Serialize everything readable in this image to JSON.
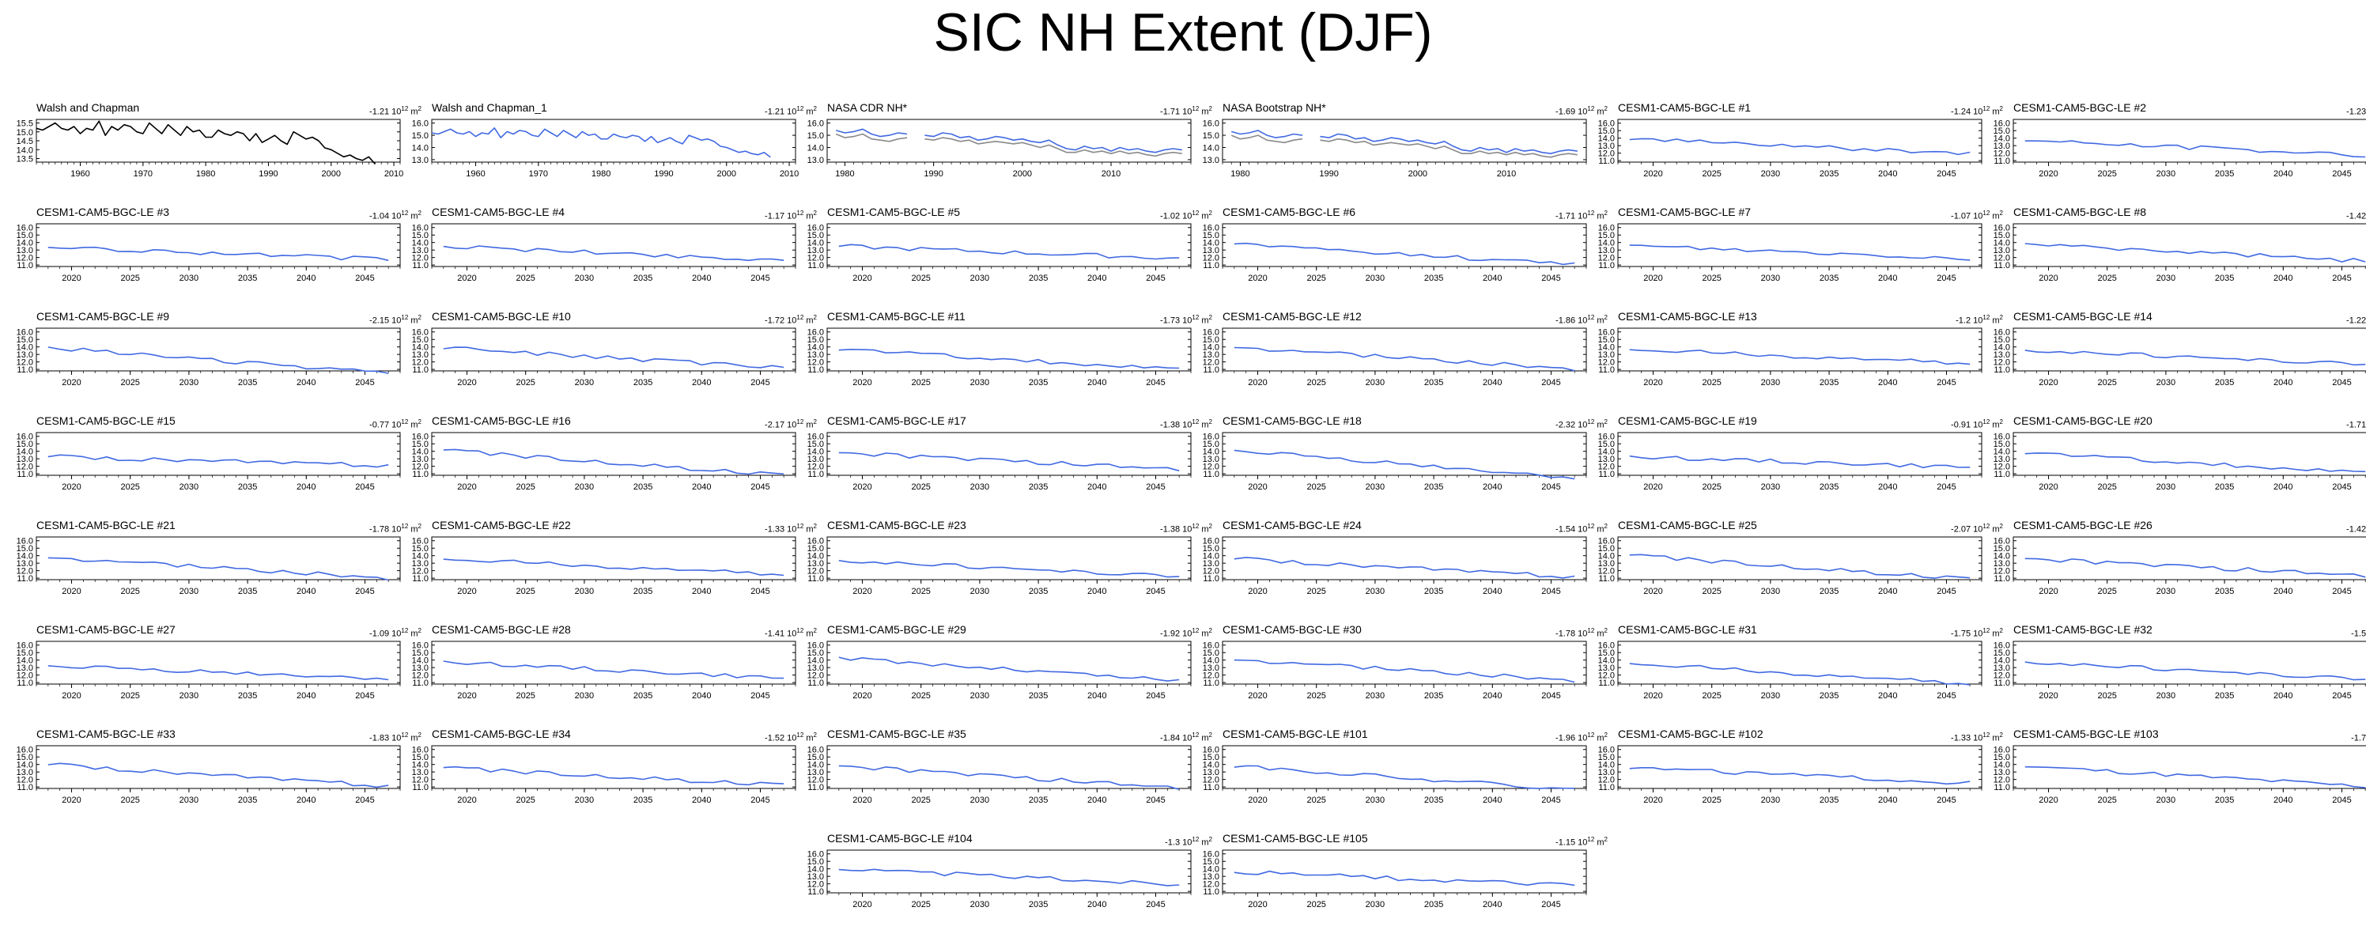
{
  "title": "SIC NH Extent (DJF)",
  "colors": {
    "obs": "#000000",
    "obs_alt": "#8a8a8a",
    "model": "#4169e1",
    "axis": "#000000"
  },
  "panels": [
    {
      "name": "Walsh and Chapman",
      "trend": "-1.21",
      "yticks": [
        "13.5",
        "14.0",
        "14.5",
        "15.0",
        "15.5"
      ],
      "ylim": [
        13.3,
        15.7
      ],
      "xticks": [
        "1960",
        "1970",
        "1980",
        "1990",
        "2000",
        "2010"
      ],
      "xlim": [
        1953,
        2011
      ],
      "style": "obs"
    },
    {
      "name": "Walsh and Chapman_1",
      "trend": "-1.21",
      "yticks": [
        "13.0",
        "14.0",
        "15.0",
        "16.0"
      ],
      "ylim": [
        12.8,
        16.3
      ],
      "xticks": [
        "1960",
        "1970",
        "1980",
        "1990",
        "2000",
        "2010"
      ],
      "xlim": [
        1953,
        2011
      ],
      "style": "model"
    },
    {
      "name": "NASA CDR NH*",
      "trend": "-1.71",
      "yticks": [
        "13.0",
        "14.0",
        "15.0",
        "16.0"
      ],
      "ylim": [
        12.8,
        16.3
      ],
      "xticks": [
        "1980",
        "1990",
        "2000",
        "2010"
      ],
      "xlim": [
        1978,
        2019
      ],
      "style": "dual"
    },
    {
      "name": "NASA Bootstrap NH*",
      "trend": "-1.69",
      "yticks": [
        "13.0",
        "14.0",
        "15.0",
        "16.0"
      ],
      "ylim": [
        12.8,
        16.3
      ],
      "xticks": [
        "1980",
        "1990",
        "2000",
        "2010"
      ],
      "xlim": [
        1978,
        2019
      ],
      "style": "dual"
    },
    {
      "name": "CESM1-CAM5-BGC-LE #1",
      "trend": "-1.24"
    },
    {
      "name": "CESM1-CAM5-BGC-LE #2",
      "trend": "-1.23"
    },
    {
      "name": "CESM1-CAM5-BGC-LE #3",
      "trend": "-1.04"
    },
    {
      "name": "CESM1-CAM5-BGC-LE #4",
      "trend": "-1.17"
    },
    {
      "name": "CESM1-CAM5-BGC-LE #5",
      "trend": "-1.02"
    },
    {
      "name": "CESM1-CAM5-BGC-LE #6",
      "trend": "-1.71"
    },
    {
      "name": "CESM1-CAM5-BGC-LE #7",
      "trend": "-1.07"
    },
    {
      "name": "CESM1-CAM5-BGC-LE #8",
      "trend": "-1.42"
    },
    {
      "name": "CESM1-CAM5-BGC-LE #9",
      "trend": "-2.15"
    },
    {
      "name": "CESM1-CAM5-BGC-LE #10",
      "trend": "-1.72"
    },
    {
      "name": "CESM1-CAM5-BGC-LE #11",
      "trend": "-1.73"
    },
    {
      "name": "CESM1-CAM5-BGC-LE #12",
      "trend": "-1.86"
    },
    {
      "name": "CESM1-CAM5-BGC-LE #13",
      "trend": "-1.2"
    },
    {
      "name": "CESM1-CAM5-BGC-LE #14",
      "trend": "-1.22"
    },
    {
      "name": "CESM1-CAM5-BGC-LE #15",
      "trend": "-0.77"
    },
    {
      "name": "CESM1-CAM5-BGC-LE #16",
      "trend": "-2.17"
    },
    {
      "name": "CESM1-CAM5-BGC-LE #17",
      "trend": "-1.38"
    },
    {
      "name": "CESM1-CAM5-BGC-LE #18",
      "trend": "-2.32"
    },
    {
      "name": "CESM1-CAM5-BGC-LE #19",
      "trend": "-0.91"
    },
    {
      "name": "CESM1-CAM5-BGC-LE #20",
      "trend": "-1.71"
    },
    {
      "name": "CESM1-CAM5-BGC-LE #21",
      "trend": "-1.78"
    },
    {
      "name": "CESM1-CAM5-BGC-LE #22",
      "trend": "-1.33"
    },
    {
      "name": "CESM1-CAM5-BGC-LE #23",
      "trend": "-1.38"
    },
    {
      "name": "CESM1-CAM5-BGC-LE #24",
      "trend": "-1.54"
    },
    {
      "name": "CESM1-CAM5-BGC-LE #25",
      "trend": "-2.07"
    },
    {
      "name": "CESM1-CAM5-BGC-LE #26",
      "trend": "-1.42"
    },
    {
      "name": "CESM1-CAM5-BGC-LE #27",
      "trend": "-1.09"
    },
    {
      "name": "CESM1-CAM5-BGC-LE #28",
      "trend": "-1.41"
    },
    {
      "name": "CESM1-CAM5-BGC-LE #29",
      "trend": "-1.92"
    },
    {
      "name": "CESM1-CAM5-BGC-LE #30",
      "trend": "-1.78"
    },
    {
      "name": "CESM1-CAM5-BGC-LE #31",
      "trend": "-1.75"
    },
    {
      "name": "CESM1-CAM5-BGC-LE #32",
      "trend": "-1.5"
    },
    {
      "name": "CESM1-CAM5-BGC-LE #33",
      "trend": "-1.83"
    },
    {
      "name": "CESM1-CAM5-BGC-LE #34",
      "trend": "-1.52"
    },
    {
      "name": "CESM1-CAM5-BGC-LE #35",
      "trend": "-1.84"
    },
    {
      "name": "CESM1-CAM5-BGC-LE #101",
      "trend": "-1.96"
    },
    {
      "name": "CESM1-CAM5-BGC-LE #102",
      "trend": "-1.33"
    },
    {
      "name": "CESM1-CAM5-BGC-LE #103",
      "trend": "-1.7"
    },
    {
      "name": "CESM1-CAM5-BGC-LE #104",
      "trend": "-1.3"
    },
    {
      "name": "CESM1-CAM5-BGC-LE #105",
      "trend": "-1.15"
    }
  ],
  "chart_data": {
    "type": "line",
    "title": "SIC NH Extent (DJF)",
    "trend_units_base": "10",
    "trend_units_exp": "12",
    "trend_units_suffix": "m",
    "trend_units_suffix_exp": "2",
    "model_defaults": {
      "xticks": [
        "2020",
        "2025",
        "2030",
        "2035",
        "2040",
        "2045"
      ],
      "xlim": [
        2017,
        2048
      ],
      "yticks": [
        "11.0",
        "12.0",
        "13.0",
        "14.0",
        "15.0",
        "16.0"
      ],
      "ylim": [
        10.8,
        16.5
      ]
    },
    "series": {
      "Walsh and Chapman": {
        "x0": 1953,
        "values": [
          15.2,
          15.1,
          15.3,
          15.5,
          15.2,
          15.1,
          15.3,
          14.9,
          15.2,
          15.1,
          15.6,
          14.8,
          15.3,
          15.1,
          15.4,
          15.3,
          15.0,
          14.9,
          15.5,
          15.2,
          14.9,
          15.4,
          15.1,
          14.8,
          15.3,
          15.0,
          15.1,
          14.7,
          14.7,
          15.1,
          14.9,
          14.8,
          15.0,
          14.9,
          14.5,
          14.9,
          14.4,
          14.6,
          14.8,
          14.5,
          14.3,
          15.0,
          14.8,
          14.6,
          14.7,
          14.5,
          14.1,
          14.0,
          13.8,
          13.6,
          13.7,
          13.5,
          13.4,
          13.6,
          13.2
        ]
      },
      "Walsh and Chapman_1": {
        "x0": 1953,
        "values": [
          15.2,
          15.1,
          15.3,
          15.5,
          15.2,
          15.1,
          15.3,
          14.9,
          15.2,
          15.1,
          15.6,
          14.8,
          15.3,
          15.1,
          15.4,
          15.3,
          15.0,
          14.9,
          15.5,
          15.2,
          14.9,
          15.4,
          15.1,
          14.8,
          15.3,
          15.0,
          15.1,
          14.7,
          14.7,
          15.1,
          14.9,
          14.8,
          15.0,
          14.9,
          14.5,
          14.9,
          14.4,
          14.6,
          14.8,
          14.5,
          14.3,
          15.0,
          14.8,
          14.6,
          14.7,
          14.5,
          14.1,
          14.0,
          13.8,
          13.6,
          13.7,
          13.5,
          13.4,
          13.6,
          13.2
        ]
      },
      "NASA CDR NH*": {
        "x0": 1979,
        "values": [
          15.4,
          15.2,
          15.3,
          15.5,
          15.1,
          14.9,
          15.0,
          15.2,
          15.1,
          null,
          15.0,
          14.9,
          15.2,
          15.1,
          14.8,
          14.9,
          14.6,
          14.7,
          14.9,
          14.8,
          14.6,
          14.7,
          14.5,
          14.4,
          14.6,
          14.2,
          13.9,
          13.8,
          14.1,
          13.9,
          14.0,
          13.7,
          14.0,
          13.8,
          13.9,
          13.7,
          13.6,
          13.8,
          13.9,
          13.8
        ],
        "alt": [
          15.1,
          14.8,
          14.9,
          15.1,
          14.7,
          14.6,
          14.5,
          14.7,
          14.8,
          null,
          14.7,
          14.6,
          14.8,
          14.7,
          14.5,
          14.6,
          14.3,
          14.4,
          14.5,
          14.4,
          14.3,
          14.4,
          14.2,
          14.0,
          14.2,
          13.9,
          13.6,
          13.6,
          13.8,
          13.6,
          13.7,
          13.5,
          13.7,
          13.5,
          13.6,
          13.4,
          13.3,
          13.5,
          13.6,
          13.5
        ]
      },
      "NASA Bootstrap NH*": {
        "x0": 1979,
        "values": [
          15.3,
          15.1,
          15.2,
          15.4,
          15.0,
          14.8,
          14.9,
          15.1,
          15.0,
          null,
          14.9,
          14.8,
          15.1,
          15.0,
          14.7,
          14.8,
          14.5,
          14.6,
          14.8,
          14.7,
          14.5,
          14.6,
          14.4,
          14.3,
          14.5,
          14.1,
          13.8,
          13.7,
          14.0,
          13.8,
          13.9,
          13.6,
          13.9,
          13.7,
          13.8,
          13.6,
          13.5,
          13.7,
          13.8,
          13.7
        ],
        "alt": [
          15.0,
          14.7,
          14.8,
          15.0,
          14.6,
          14.5,
          14.4,
          14.6,
          14.7,
          null,
          14.6,
          14.5,
          14.7,
          14.6,
          14.4,
          14.5,
          14.2,
          14.3,
          14.4,
          14.3,
          14.2,
          14.3,
          14.1,
          13.9,
          14.1,
          13.8,
          13.5,
          13.5,
          13.7,
          13.5,
          13.6,
          13.4,
          13.6,
          13.4,
          13.5,
          13.3,
          13.2,
          13.4,
          13.5,
          13.4
        ]
      },
      "CESM1-CAM5-BGC-LE #1": {
        "x0": 2018,
        "start": 13.9,
        "trend": -1.24
      },
      "CESM1-CAM5-BGC-LE #2": {
        "x0": 2018,
        "start": 13.7,
        "trend": -1.23
      },
      "CESM1-CAM5-BGC-LE #3": {
        "x0": 2018,
        "start": 13.4,
        "trend": -1.04
      },
      "CESM1-CAM5-BGC-LE #4": {
        "x0": 2018,
        "start": 13.5,
        "trend": -1.17
      },
      "CESM1-CAM5-BGC-LE #5": {
        "x0": 2018,
        "start": 13.5,
        "trend": -1.02
      },
      "CESM1-CAM5-BGC-LE #6": {
        "x0": 2018,
        "start": 13.8,
        "trend": -1.71
      },
      "CESM1-CAM5-BGC-LE #7": {
        "x0": 2018,
        "start": 13.6,
        "trend": -1.07
      },
      "CESM1-CAM5-BGC-LE #8": {
        "x0": 2018,
        "start": 13.8,
        "trend": -1.42
      },
      "CESM1-CAM5-BGC-LE #9": {
        "x0": 2018,
        "start": 13.9,
        "trend": -2.15
      },
      "CESM1-CAM5-BGC-LE #10": {
        "x0": 2018,
        "start": 13.9,
        "trend": -1.72
      },
      "CESM1-CAM5-BGC-LE #11": {
        "x0": 2018,
        "start": 13.7,
        "trend": -1.73
      },
      "CESM1-CAM5-BGC-LE #12": {
        "x0": 2018,
        "start": 14.0,
        "trend": -1.86
      },
      "CESM1-CAM5-BGC-LE #13": {
        "x0": 2018,
        "start": 13.7,
        "trend": -1.2
      },
      "CESM1-CAM5-BGC-LE #14": {
        "x0": 2018,
        "start": 13.6,
        "trend": -1.22
      },
      "CESM1-CAM5-BGC-LE #15": {
        "x0": 2018,
        "start": 13.3,
        "trend": -0.77
      },
      "CESM1-CAM5-BGC-LE #16": {
        "x0": 2018,
        "start": 14.2,
        "trend": -2.17
      },
      "CESM1-CAM5-BGC-LE #17": {
        "x0": 2018,
        "start": 13.8,
        "trend": -1.38
      },
      "CESM1-CAM5-BGC-LE #18": {
        "x0": 2018,
        "start": 14.1,
        "trend": -2.32
      },
      "CESM1-CAM5-BGC-LE #19": {
        "x0": 2018,
        "start": 13.3,
        "trend": -0.91
      },
      "CESM1-CAM5-BGC-LE #20": {
        "x0": 2018,
        "start": 13.8,
        "trend": -1.71
      },
      "CESM1-CAM5-BGC-LE #21": {
        "x0": 2018,
        "start": 13.8,
        "trend": -1.78
      },
      "CESM1-CAM5-BGC-LE #22": {
        "x0": 2018,
        "start": 13.6,
        "trend": -1.33
      },
      "CESM1-CAM5-BGC-LE #23": {
        "x0": 2018,
        "start": 13.4,
        "trend": -1.38
      },
      "CESM1-CAM5-BGC-LE #24": {
        "x0": 2018,
        "start": 13.6,
        "trend": -1.54
      },
      "CESM1-CAM5-BGC-LE #25": {
        "x0": 2018,
        "start": 14.1,
        "trend": -2.07
      },
      "CESM1-CAM5-BGC-LE #26": {
        "x0": 2018,
        "start": 13.6,
        "trend": -1.42
      },
      "CESM1-CAM5-BGC-LE #27": {
        "x0": 2018,
        "start": 13.2,
        "trend": -1.09
      },
      "CESM1-CAM5-BGC-LE #28": {
        "x0": 2018,
        "start": 13.8,
        "trend": -1.41
      },
      "CESM1-CAM5-BGC-LE #29": {
        "x0": 2018,
        "start": 14.3,
        "trend": -1.92
      },
      "CESM1-CAM5-BGC-LE #30": {
        "x0": 2018,
        "start": 14.1,
        "trend": -1.78
      },
      "CESM1-CAM5-BGC-LE #31": {
        "x0": 2018,
        "start": 13.6,
        "trend": -1.75
      },
      "CESM1-CAM5-BGC-LE #32": {
        "x0": 2018,
        "start": 13.8,
        "trend": -1.5
      },
      "CESM1-CAM5-BGC-LE #33": {
        "x0": 2018,
        "start": 14.0,
        "trend": -1.83
      },
      "CESM1-CAM5-BGC-LE #34": {
        "x0": 2018,
        "start": 13.6,
        "trend": -1.52
      },
      "CESM1-CAM5-BGC-LE #35": {
        "x0": 2018,
        "start": 13.8,
        "trend": -1.84
      },
      "CESM1-CAM5-BGC-LE #101": {
        "x0": 2018,
        "start": 13.8,
        "trend": -1.96
      },
      "CESM1-CAM5-BGC-LE #102": {
        "x0": 2018,
        "start": 13.6,
        "trend": -1.33
      },
      "CESM1-CAM5-BGC-LE #103": {
        "x0": 2018,
        "start": 13.8,
        "trend": -1.7
      },
      "CESM1-CAM5-BGC-LE #104": {
        "x0": 2018,
        "start": 14.0,
        "trend": -1.3
      },
      "CESM1-CAM5-BGC-LE #105": {
        "x0": 2018,
        "start": 13.6,
        "trend": -1.15
      }
    }
  }
}
